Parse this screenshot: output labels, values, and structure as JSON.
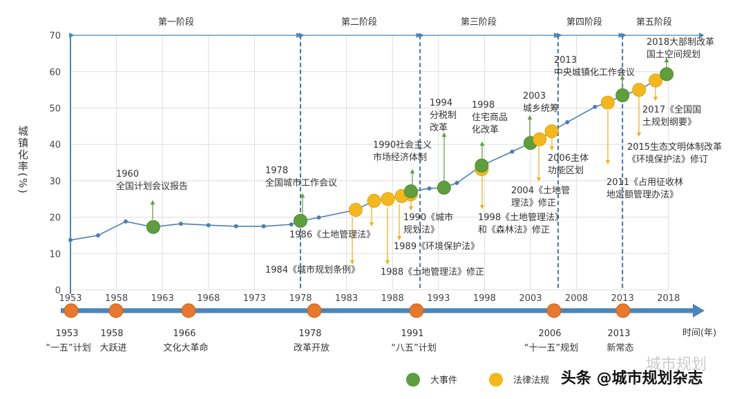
{
  "chart_data": {
    "type": "line",
    "ylabel": "城镇化率(%)",
    "xlabel": "时间(年)",
    "ylim": [
      0,
      70
    ],
    "yticks": [
      "0",
      "10",
      "20",
      "30",
      "40",
      "50",
      "60",
      "70"
    ],
    "xlim": [
      1953,
      2018
    ],
    "xticks": [
      "1953",
      "1958",
      "1963",
      "1968",
      "1973",
      "1978",
      "1983",
      "1988",
      "1993",
      "1998",
      "2003",
      "2008",
      "2013",
      "2018"
    ],
    "grid": true,
    "colors": {
      "line": "#4a7fb0",
      "event": "#5e9e3c",
      "law": "#f5b81c",
      "milestone": "#e8782a",
      "axis": "#4a86b8"
    },
    "phases": [
      {
        "label": "第一阶段",
        "from": 1953,
        "to": 1978
      },
      {
        "label": "第二阶段",
        "from": 1978,
        "to": 1991
      },
      {
        "label": "第三阶段",
        "from": 1991,
        "to": 2006
      },
      {
        "label": "第四阶段",
        "from": 2006,
        "to": 2013
      },
      {
        "label": "第五阶段",
        "from": 2013,
        "to": 2018
      }
    ],
    "series": [
      {
        "x": [
          1953,
          1956,
          1959,
          1962,
          1965,
          1968,
          1971,
          1974,
          1977,
          1978,
          1980,
          1984,
          1986,
          1987.5,
          1989,
          1990,
          1992,
          1993.6,
          1995,
          1997.7,
          2001,
          2003,
          2004,
          2005.3,
          2007,
          2010,
          2011.4,
          2013,
          2014.8,
          2016.6,
          2017.8
        ],
        "values": [
          13.7,
          15,
          18.8,
          17.3,
          18.2,
          17.8,
          17.5,
          17.5,
          18,
          19,
          19.9,
          22,
          24.5,
          25,
          25.8,
          27.1,
          27.9,
          28.1,
          29.4,
          34.2,
          38,
          40.4,
          41.4,
          43.6,
          46.1,
          50.3,
          51.5,
          53.5,
          55,
          57.6,
          59.3
        ]
      }
    ],
    "markers": [
      {
        "x": 1962,
        "value": 17.3,
        "type": "event"
      },
      {
        "x": 1978,
        "value": 19,
        "type": "event"
      },
      {
        "x": 1984,
        "value": 22,
        "type": "law"
      },
      {
        "x": 1986,
        "value": 24.5,
        "type": "law"
      },
      {
        "x": 1987.5,
        "value": 25,
        "type": "law"
      },
      {
        "x": 1989,
        "value": 25.8,
        "type": "law"
      },
      {
        "x": 1990,
        "value": 26.3,
        "type": "law"
      },
      {
        "x": 1990,
        "value": 27.1,
        "type": "event"
      },
      {
        "x": 1993.6,
        "value": 28.1,
        "type": "event"
      },
      {
        "x": 1997.7,
        "value": 33.2,
        "type": "law"
      },
      {
        "x": 1997.7,
        "value": 34.2,
        "type": "event"
      },
      {
        "x": 2003,
        "value": 40.4,
        "type": "event"
      },
      {
        "x": 2004,
        "value": 41.4,
        "type": "law"
      },
      {
        "x": 2005.3,
        "value": 43.6,
        "type": "law"
      },
      {
        "x": 2011.4,
        "value": 51.5,
        "type": "law"
      },
      {
        "x": 2013,
        "value": 53.5,
        "type": "event"
      },
      {
        "x": 2014.8,
        "value": 55,
        "type": "law"
      },
      {
        "x": 2016.6,
        "value": 57.6,
        "type": "law"
      },
      {
        "x": 2017.8,
        "value": 59.3,
        "type": "event"
      }
    ],
    "annotations": [
      {
        "lines": [
          "1960",
          "全国计划会议报告"
        ]
      },
      {
        "lines": [
          "1978",
          "全国城市工作会议"
        ]
      },
      {
        "lines": [
          "1986《土地管理法》"
        ]
      },
      {
        "lines": [
          "1984《城市规划条例》"
        ]
      },
      {
        "lines": [
          "1988《土地管理法》修正"
        ]
      },
      {
        "lines": [
          "1989《环境保护法》"
        ]
      },
      {
        "lines": [
          "1990《城市",
          "规划法》"
        ]
      },
      {
        "lines": [
          "1990社会主义",
          "市场经济体制"
        ]
      },
      {
        "lines": [
          "1994",
          "分税制",
          "改革"
        ]
      },
      {
        "lines": [
          "1998",
          "住宅商品",
          "化改革"
        ]
      },
      {
        "lines": [
          "1998《土地管理法》",
          "和《森林法》修正"
        ]
      },
      {
        "lines": [
          "2003",
          "城乡统筹"
        ]
      },
      {
        "lines": [
          "2004《土地管",
          "理法》修正"
        ]
      },
      {
        "lines": [
          "2006主体",
          "功能区划"
        ]
      },
      {
        "lines": [
          "2013",
          "中央城镇化工作会议"
        ]
      },
      {
        "lines": [
          "2011《占用征收林",
          "地定额管理办法》"
        ]
      },
      {
        "lines": [
          "2015生态文明体制改革",
          "《环境保护法》修订"
        ]
      },
      {
        "lines": [
          "2017《全国国",
          "土规划纲要》"
        ]
      },
      {
        "lines": [
          "2018大部制改革",
          "国土空间规划"
        ]
      }
    ],
    "timeline": [
      {
        "year": "1953",
        "label": "“一五”计划"
      },
      {
        "year": "1958",
        "label": "大跃进"
      },
      {
        "year": "1966",
        "label": "文化大革命"
      },
      {
        "year": "1978",
        "label": "改革开放"
      },
      {
        "year": "1991",
        "label": "“八五”计划"
      },
      {
        "year": "2006",
        "label": "“十一五”规划"
      },
      {
        "year": "2013",
        "label": "新常态"
      }
    ],
    "legend": [
      {
        "label": "大事件",
        "type": "event"
      },
      {
        "label": "法律法规",
        "type": "law"
      }
    ]
  },
  "watermark": {
    "text": "头条 @城市规划杂志",
    "faint": "城市规划"
  }
}
